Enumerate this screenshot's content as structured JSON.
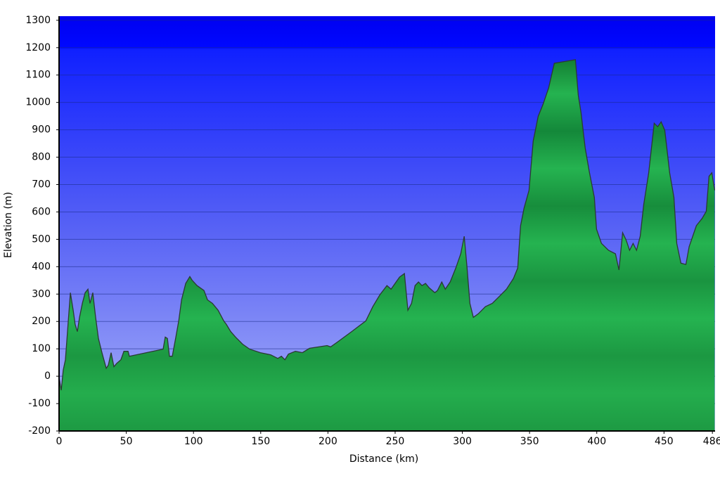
{
  "chart_data": {
    "type": "area",
    "x_label": "Distance (km)",
    "y_label": "Elevation (m)",
    "xlim": [
      0,
      488
    ],
    "ylim": [
      -200,
      1315
    ],
    "xticks": [
      0,
      50,
      100,
      150,
      200,
      250,
      300,
      350,
      400,
      450,
      486
    ],
    "yticks": [
      -200,
      -100,
      0,
      100,
      200,
      300,
      400,
      500,
      600,
      700,
      800,
      900,
      1000,
      1100,
      1200,
      1300
    ],
    "grid": true,
    "color": "#1fa64a",
    "x": [
      0,
      1.6,
      3.1,
      4.7,
      6.3,
      8.4,
      10.5,
      12,
      13.6,
      15.2,
      17.3,
      19.4,
      21.5,
      23,
      25.1,
      27.2,
      29.3,
      31.9,
      35.1,
      36.6,
      38.7,
      40.8,
      42.9,
      46,
      48.2,
      51.3,
      52.3,
      77.4,
      79,
      80.6,
      82.1,
      84.2,
      86.9,
      89,
      91.1,
      94.2,
      97.3,
      98.9,
      102.6,
      107.8,
      110.4,
      114.1,
      118.3,
      122.5,
      124.5,
      127.7,
      131.3,
      136.5,
      141.8,
      149.7,
      157.5,
      162.7,
      165.4,
      168,
      170.6,
      175.8,
      181,
      186.3,
      199.4,
      202,
      207.2,
      217.7,
      228.2,
      233.4,
      238.6,
      243.9,
      247,
      250.7,
      253.3,
      256.9,
      259.5,
      262.2,
      264.8,
      267.4,
      270,
      272.6,
      275.3,
      279.5,
      281.5,
      284.7,
      287.3,
      290.9,
      295.1,
      298.8,
      301.4,
      303.5,
      305.6,
      308.2,
      311.9,
      317.1,
      322.3,
      327.6,
      332.8,
      338,
      341.2,
      343.3,
      345.9,
      349.6,
      352.7,
      356.4,
      360,
      364.2,
      368.4,
      384.1,
      386.2,
      388.3,
      391.4,
      394.6,
      398.2,
      399.8,
      403.5,
      408.7,
      413.9,
      416.5,
      419.2,
      421.8,
      424.4,
      427,
      429.6,
      432.3,
      434.9,
      438.6,
      442.7,
      445.3,
      447.9,
      450.6,
      452.1,
      454.2,
      457.4,
      459.5,
      462.6,
      466.3,
      468.7,
      474.1,
      478.3,
      481.4,
      483.5,
      485.6,
      487.7
    ],
    "values": [
      -4,
      -51,
      22,
      60,
      163,
      305,
      241,
      189,
      163,
      215,
      266,
      305,
      318,
      266,
      305,
      215,
      138,
      86,
      29,
      40,
      86,
      35,
      47,
      60,
      91,
      91,
      73,
      99,
      143,
      138,
      73,
      73,
      143,
      202,
      279,
      339,
      364,
      351,
      331,
      313,
      279,
      266,
      241,
      202,
      189,
      163,
      143,
      117,
      99,
      86,
      78,
      65,
      73,
      60,
      81,
      91,
      86,
      102,
      112,
      107,
      125,
      163,
      202,
      254,
      297,
      331,
      318,
      344,
      362,
      375,
      241,
      266,
      331,
      344,
      331,
      339,
      323,
      305,
      313,
      344,
      318,
      344,
      395,
      447,
      511,
      395,
      266,
      215,
      228,
      254,
      266,
      292,
      318,
      357,
      395,
      550,
      614,
      679,
      859,
      949,
      993,
      1053,
      1143,
      1156,
      1027,
      962,
      833,
      743,
      653,
      537,
      485,
      460,
      447,
      388,
      524,
      498,
      460,
      485,
      460,
      511,
      627,
      743,
      924,
      911,
      929,
      898,
      833,
      743,
      653,
      485,
      413,
      408,
      473,
      550,
      576,
      602,
      730,
      743,
      679
    ]
  }
}
